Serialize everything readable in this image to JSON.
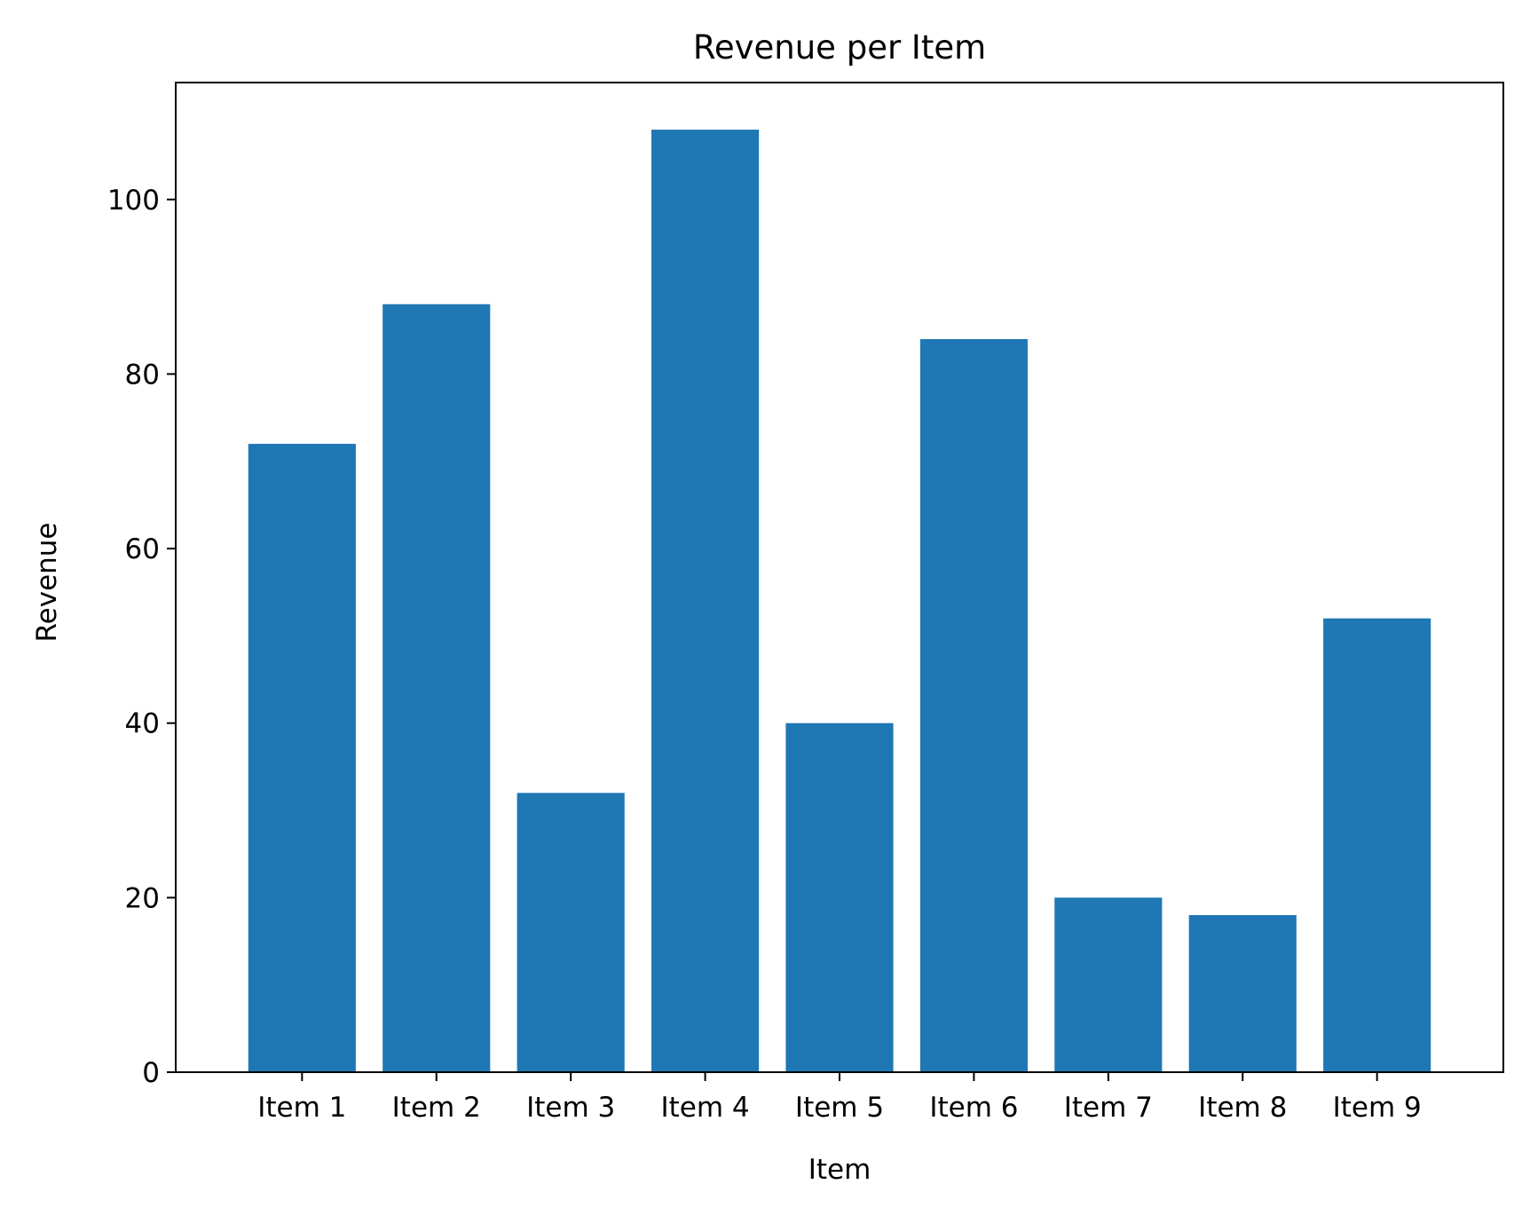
{
  "chart_data": {
    "type": "bar",
    "title": "Revenue per Item",
    "xlabel": "Item",
    "ylabel": "Revenue",
    "categories": [
      "Item 1",
      "Item 2",
      "Item 3",
      "Item 4",
      "Item 5",
      "Item 6",
      "Item 7",
      "Item 8",
      "Item 9"
    ],
    "values": [
      72,
      88,
      32,
      108,
      40,
      84,
      20,
      18,
      52
    ],
    "ylim": [
      0,
      113.4
    ],
    "yticks": [
      0,
      20,
      40,
      60,
      80,
      100
    ],
    "grid": false,
    "bar_color": "#1f77b4"
  }
}
